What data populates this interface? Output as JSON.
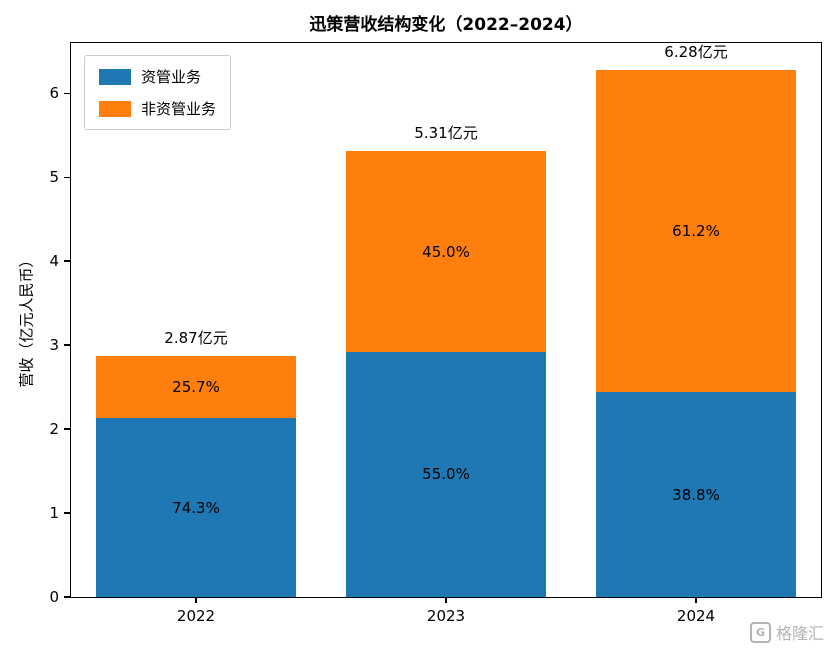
{
  "watermark": "格隆汇",
  "chart_data": {
    "type": "bar",
    "stacked": true,
    "title": "迅策营收结构变化（2022–2024）",
    "ylabel": "营收（亿元人民币）",
    "categories": [
      "2022",
      "2023",
      "2024"
    ],
    "series": [
      {
        "name": "资管业务",
        "color": "#1f77b4",
        "values": [
          2.13,
          2.92,
          2.44
        ],
        "pct_labels": [
          "74.3%",
          "55.0%",
          "38.8%"
        ]
      },
      {
        "name": "非资管业务",
        "color": "#ff7f0e",
        "values": [
          0.74,
          2.39,
          3.84
        ],
        "pct_labels": [
          "25.7%",
          "45.0%",
          "61.2%"
        ]
      }
    ],
    "total_values": [
      2.87,
      5.31,
      6.28
    ],
    "totals": [
      "2.87亿元",
      "5.31亿元",
      "6.28亿元"
    ],
    "yticks": [
      0,
      1,
      2,
      3,
      4,
      5,
      6
    ],
    "ylim": [
      0,
      6.6
    ],
    "bar_width": 0.8,
    "grid": false,
    "legend_position": "upper left"
  }
}
